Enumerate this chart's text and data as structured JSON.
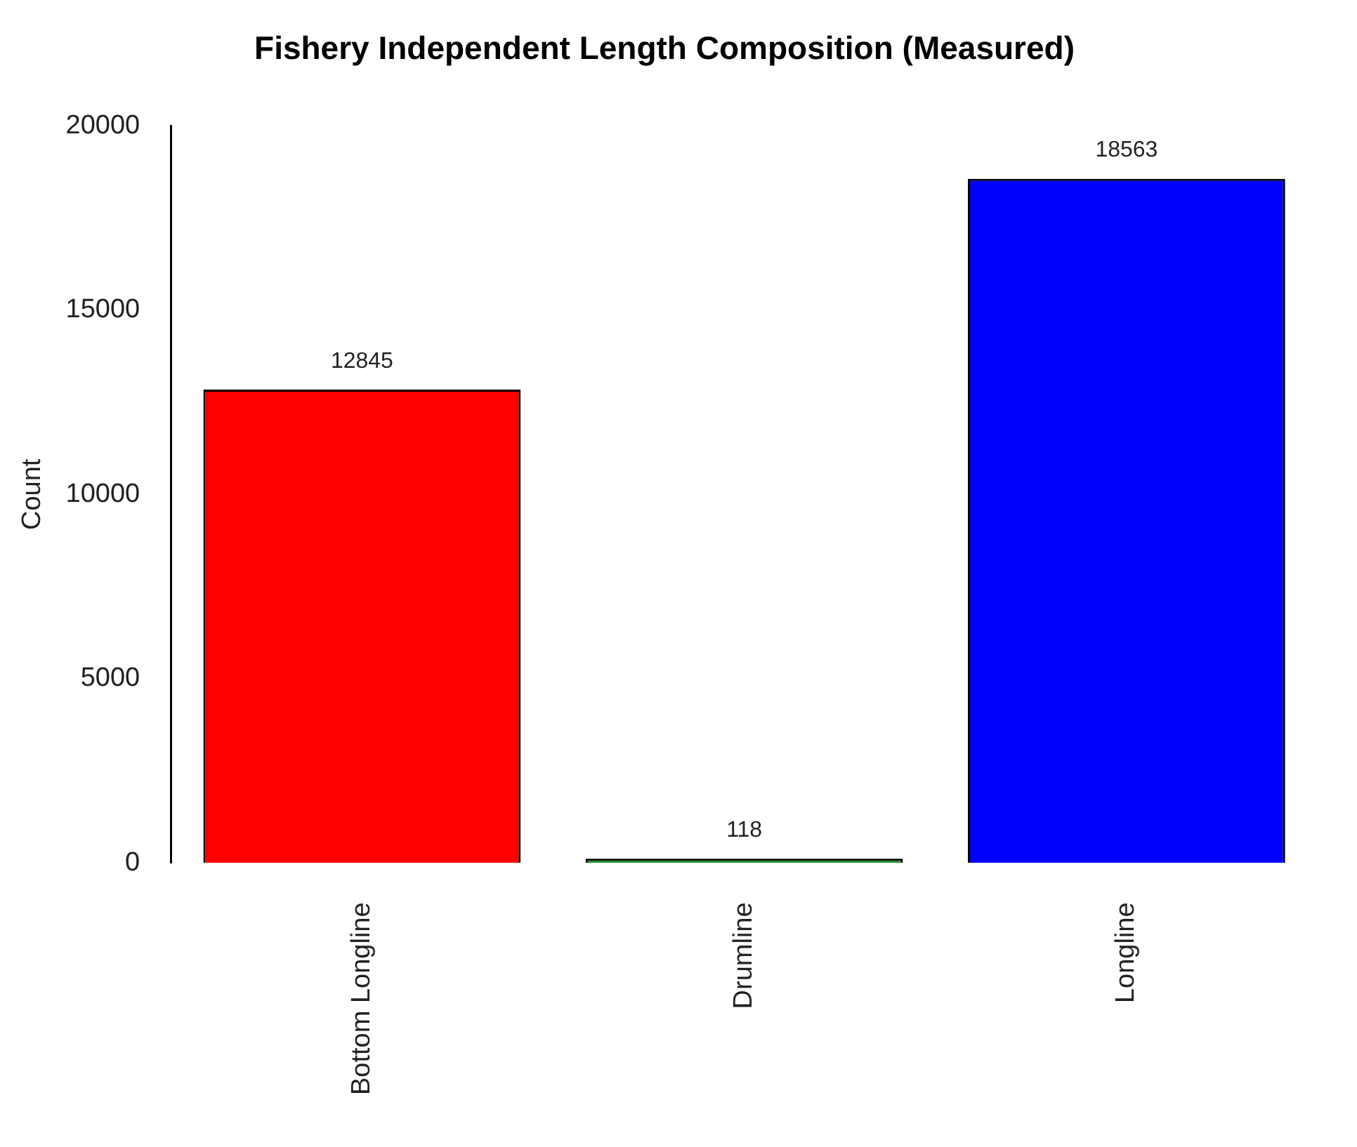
{
  "chart_data": {
    "type": "bar",
    "title": "Fishery Independent Length Composition (Measured)",
    "ylabel": "Count",
    "categories": [
      "Bottom Longline",
      "Drumline",
      "Longline"
    ],
    "values": [
      12845,
      118,
      18563
    ],
    "colors": [
      "#ff0000",
      "#228b22",
      "#0000ff"
    ],
    "ylim": [
      0,
      20000
    ],
    "yticks": [
      0,
      5000,
      10000,
      15000,
      20000
    ],
    "grid": false,
    "legend": false,
    "data_labels": true
  }
}
